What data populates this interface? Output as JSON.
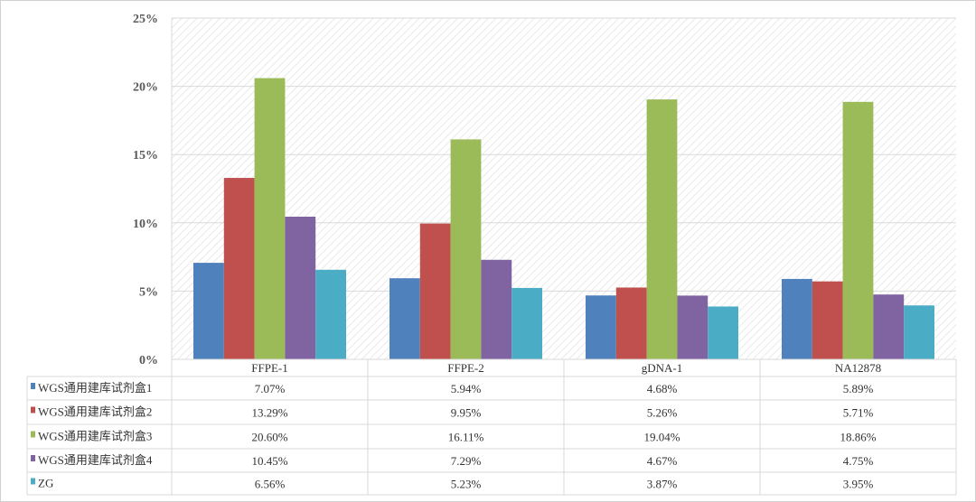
{
  "chart_data": {
    "type": "bar",
    "categories": [
      "FFPE-1",
      "FFPE-2",
      "gDNA-1",
      "NA12878"
    ],
    "series": [
      {
        "name": "WGS通用建库试剂盒1",
        "color": "#4f81bd",
        "values": [
          7.07,
          5.94,
          4.68,
          5.89
        ],
        "labels": [
          "7.07%",
          "5.94%",
          "4.68%",
          "5.89%"
        ]
      },
      {
        "name": "WGS通用建库试剂盒2",
        "color": "#c0504d",
        "values": [
          13.29,
          9.95,
          5.26,
          5.71
        ],
        "labels": [
          "13.29%",
          "9.95%",
          "5.26%",
          "5.71%"
        ]
      },
      {
        "name": "WGS通用建库试剂盒3",
        "color": "#9bbb59",
        "values": [
          20.6,
          16.11,
          19.04,
          18.86
        ],
        "labels": [
          "20.60%",
          "16.11%",
          "19.04%",
          "18.86%"
        ]
      },
      {
        "name": "WGS通用建库试剂盒4",
        "color": "#8064a2",
        "values": [
          10.45,
          7.29,
          4.67,
          4.75
        ],
        "labels": [
          "10.45%",
          "7.29%",
          "4.67%",
          "4.75%"
        ]
      },
      {
        "name": "ZG",
        "color": "#4bacc6",
        "values": [
          6.56,
          5.23,
          3.87,
          3.95
        ],
        "labels": [
          "6.56%",
          "5.23%",
          "3.87%",
          "3.95%"
        ]
      }
    ],
    "yticks": [
      "0%",
      "5%",
      "10%",
      "15%",
      "20%",
      "25%"
    ],
    "ylim": [
      0,
      25
    ],
    "grid": true,
    "legend": "data-table",
    "xlabel": "",
    "ylabel": "",
    "title": ""
  }
}
